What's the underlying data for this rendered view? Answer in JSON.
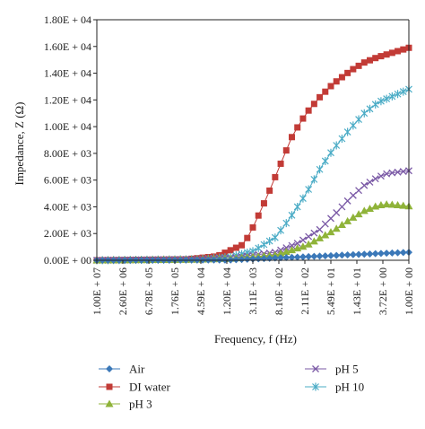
{
  "chart_data": {
    "type": "line",
    "xlabel": "Frequency, f (Hz)",
    "ylabel": "Impedance, Z (Ω)",
    "x_scale": "log",
    "x_reversed": true,
    "xlim": [
      10000000,
      1
    ],
    "ylim": [
      0,
      18000
    ],
    "x_tick_labels": [
      "1.00E + 07",
      "2.60E + 06",
      "6.78E + 05",
      "1.76E + 05",
      "4.59E + 04",
      "1.20E + 04",
      "3.11E + 03",
      "8.10E + 02",
      "2.11E + 02",
      "5.49E + 01",
      "1.43E + 01",
      "3.72E + 00",
      "1.00E + 00"
    ],
    "y_tick_labels": [
      "0.00E + 00",
      "2.00E + 03",
      "4.00E + 03",
      "6.00E + 03",
      "8.00E + 03",
      "1.00E + 04",
      "1.20E + 04",
      "1.40E + 04",
      "1.60E + 04",
      "1.80E + 04"
    ],
    "legend_position": "bottom",
    "point_count": 57,
    "series": [
      {
        "name": "Air",
        "color": "#3b78b8",
        "marker": "diamond",
        "key_x": [
          10000000,
          10000,
          1
        ],
        "key_y": [
          0,
          20,
          600
        ]
      },
      {
        "name": "DI water",
        "color": "#c23b36",
        "marker": "square",
        "key_x": [
          10000000,
          100000,
          20000,
          5000,
          3000,
          1500,
          800,
          400,
          200,
          100,
          50,
          20,
          10,
          5,
          1
        ],
        "key_y": [
          0,
          70,
          300,
          1200,
          2600,
          4800,
          7000,
          9400,
          11000,
          12200,
          13200,
          14200,
          14800,
          15200,
          15900
        ]
      },
      {
        "name": "pH 3",
        "color": "#8fb339",
        "marker": "triangle",
        "key_x": [
          10000000,
          50000,
          10000,
          1000,
          200,
          50,
          20,
          10,
          5,
          3,
          1
        ],
        "key_y": [
          0,
          60,
          130,
          380,
          1100,
          2200,
          3100,
          3700,
          4100,
          4200,
          4050
        ]
      },
      {
        "name": "pH 5",
        "color": "#7b5aa6",
        "marker": "x",
        "key_x": [
          10000000,
          50000,
          10000,
          1000,
          300,
          100,
          50,
          20,
          10,
          5,
          3,
          1
        ],
        "key_y": [
          0,
          70,
          150,
          600,
          1300,
          2300,
          3300,
          4700,
          5600,
          6200,
          6500,
          6700
        ]
      },
      {
        "name": "pH 10",
        "color": "#4bacc6",
        "marker": "star",
        "key_x": [
          10000000,
          50000,
          10000,
          3000,
          1000,
          500,
          200,
          100,
          50,
          20,
          10,
          5,
          1
        ],
        "key_y": [
          0,
          80,
          250,
          700,
          1700,
          3000,
          5000,
          6800,
          8300,
          9900,
          11000,
          11800,
          12800
        ]
      }
    ]
  }
}
